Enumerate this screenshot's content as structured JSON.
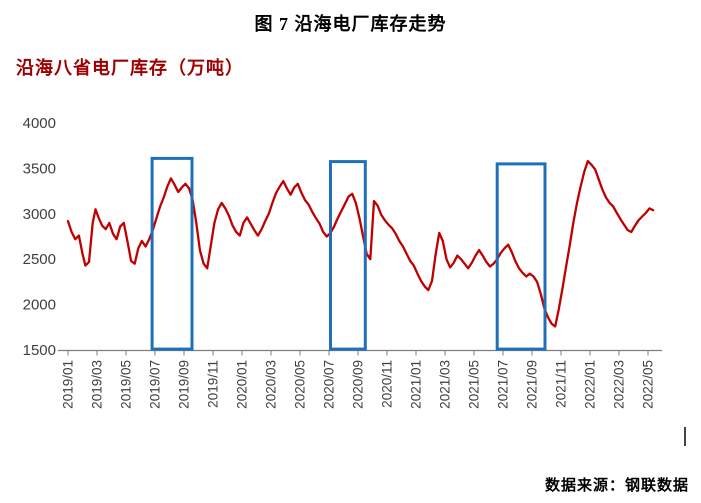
{
  "page": {
    "title": "图 7  沿海电厂库存走势",
    "chart_heading": "沿海八省电厂库存（万吨）",
    "source": "数据来源：钢联数据"
  },
  "colors": {
    "line": "#c00000",
    "highlight_box": "#1f70b8",
    "heading": "#9c0000",
    "axis_text": "#3f3f3f",
    "axis_line": "#7f7f7f"
  },
  "chart_data": {
    "type": "line",
    "title": "沿海八省电厂库存（万吨）",
    "xlabel": "",
    "ylabel": "",
    "ylim": [
      1500,
      4000
    ],
    "grid": false,
    "legend": false,
    "y_ticks": [
      1500,
      2000,
      2500,
      3000,
      3500,
      4000
    ],
    "x_ticks": [
      {
        "pos": 0,
        "label": "2019/01"
      },
      {
        "pos": 2,
        "label": "2019/03"
      },
      {
        "pos": 4,
        "label": "2019/05"
      },
      {
        "pos": 6,
        "label": "2019/07"
      },
      {
        "pos": 8,
        "label": "2019/09"
      },
      {
        "pos": 10,
        "label": "2019/11"
      },
      {
        "pos": 12,
        "label": "2020/01"
      },
      {
        "pos": 14,
        "label": "2020/03"
      },
      {
        "pos": 16,
        "label": "2020/05"
      },
      {
        "pos": 18,
        "label": "2020/07"
      },
      {
        "pos": 20,
        "label": "2020/09"
      },
      {
        "pos": 22,
        "label": "2020/11"
      },
      {
        "pos": 24,
        "label": "2021/01"
      },
      {
        "pos": 26,
        "label": "2021/03"
      },
      {
        "pos": 28,
        "label": "2021/05"
      },
      {
        "pos": 30,
        "label": "2021/07"
      },
      {
        "pos": 32,
        "label": "2021/09"
      },
      {
        "pos": 34,
        "label": "2021/11"
      },
      {
        "pos": 36,
        "label": "2022/01"
      },
      {
        "pos": 38,
        "label": "2022/03"
      },
      {
        "pos": 40,
        "label": "2022/05"
      }
    ],
    "highlight_boxes": [
      {
        "x_start": 5.8,
        "x_end": 8.55,
        "y_bottom": 1510,
        "y_top": 3610
      },
      {
        "x_start": 18.1,
        "x_end": 20.5,
        "y_bottom": 1510,
        "y_top": 3575
      },
      {
        "x_start": 29.6,
        "x_end": 32.9,
        "y_bottom": 1510,
        "y_top": 3550
      }
    ],
    "series": [
      {
        "name": "沿海八省电厂库存",
        "points": [
          [
            0,
            2920
          ],
          [
            0.25,
            2800
          ],
          [
            0.5,
            2720
          ],
          [
            0.75,
            2760
          ],
          [
            1,
            2560
          ],
          [
            1.2,
            2430
          ],
          [
            1.45,
            2470
          ],
          [
            1.7,
            2900
          ],
          [
            1.9,
            3050
          ],
          [
            2.1,
            2960
          ],
          [
            2.35,
            2870
          ],
          [
            2.6,
            2830
          ],
          [
            2.85,
            2900
          ],
          [
            3.1,
            2780
          ],
          [
            3.35,
            2720
          ],
          [
            3.6,
            2860
          ],
          [
            3.85,
            2900
          ],
          [
            4.1,
            2700
          ],
          [
            4.35,
            2480
          ],
          [
            4.6,
            2450
          ],
          [
            4.85,
            2620
          ],
          [
            5.1,
            2700
          ],
          [
            5.35,
            2640
          ],
          [
            5.6,
            2720
          ],
          [
            5.85,
            2820
          ],
          [
            6.1,
            2950
          ],
          [
            6.35,
            3080
          ],
          [
            6.6,
            3180
          ],
          [
            6.85,
            3300
          ],
          [
            7.1,
            3390
          ],
          [
            7.35,
            3320
          ],
          [
            7.6,
            3240
          ],
          [
            7.85,
            3290
          ],
          [
            8.1,
            3330
          ],
          [
            8.35,
            3280
          ],
          [
            8.6,
            3150
          ],
          [
            8.85,
            2900
          ],
          [
            9.1,
            2600
          ],
          [
            9.35,
            2450
          ],
          [
            9.6,
            2400
          ],
          [
            9.85,
            2650
          ],
          [
            10.1,
            2900
          ],
          [
            10.35,
            3050
          ],
          [
            10.6,
            3120
          ],
          [
            10.85,
            3060
          ],
          [
            11.1,
            2980
          ],
          [
            11.35,
            2870
          ],
          [
            11.6,
            2800
          ],
          [
            11.85,
            2760
          ],
          [
            12.1,
            2900
          ],
          [
            12.35,
            2960
          ],
          [
            12.6,
            2890
          ],
          [
            12.85,
            2820
          ],
          [
            13.1,
            2760
          ],
          [
            13.35,
            2830
          ],
          [
            13.6,
            2920
          ],
          [
            13.85,
            3000
          ],
          [
            14.1,
            3120
          ],
          [
            14.35,
            3230
          ],
          [
            14.6,
            3300
          ],
          [
            14.85,
            3360
          ],
          [
            15.1,
            3280
          ],
          [
            15.35,
            3210
          ],
          [
            15.6,
            3290
          ],
          [
            15.85,
            3330
          ],
          [
            16.1,
            3230
          ],
          [
            16.35,
            3150
          ],
          [
            16.6,
            3100
          ],
          [
            16.85,
            3020
          ],
          [
            17.1,
            2950
          ],
          [
            17.35,
            2890
          ],
          [
            17.6,
            2800
          ],
          [
            17.85,
            2750
          ],
          [
            18.1,
            2790
          ],
          [
            18.35,
            2860
          ],
          [
            18.6,
            2950
          ],
          [
            18.85,
            3030
          ],
          [
            19.1,
            3110
          ],
          [
            19.35,
            3190
          ],
          [
            19.6,
            3220
          ],
          [
            19.85,
            3120
          ],
          [
            20.1,
            2950
          ],
          [
            20.35,
            2750
          ],
          [
            20.6,
            2560
          ],
          [
            20.85,
            2500
          ],
          [
            21.1,
            3140
          ],
          [
            21.35,
            3090
          ],
          [
            21.6,
            2990
          ],
          [
            21.85,
            2930
          ],
          [
            22.1,
            2880
          ],
          [
            22.35,
            2840
          ],
          [
            22.6,
            2780
          ],
          [
            22.85,
            2700
          ],
          [
            23.1,
            2640
          ],
          [
            23.35,
            2560
          ],
          [
            23.6,
            2480
          ],
          [
            23.85,
            2430
          ],
          [
            24.1,
            2340
          ],
          [
            24.35,
            2260
          ],
          [
            24.6,
            2200
          ],
          [
            24.85,
            2160
          ],
          [
            25.1,
            2260
          ],
          [
            25.35,
            2550
          ],
          [
            25.6,
            2790
          ],
          [
            25.85,
            2700
          ],
          [
            26.1,
            2500
          ],
          [
            26.35,
            2410
          ],
          [
            26.6,
            2460
          ],
          [
            26.85,
            2540
          ],
          [
            27.1,
            2500
          ],
          [
            27.35,
            2450
          ],
          [
            27.6,
            2400
          ],
          [
            27.85,
            2460
          ],
          [
            28.1,
            2540
          ],
          [
            28.35,
            2600
          ],
          [
            28.6,
            2540
          ],
          [
            28.85,
            2470
          ],
          [
            29.1,
            2420
          ],
          [
            29.35,
            2450
          ],
          [
            29.6,
            2500
          ],
          [
            29.85,
            2570
          ],
          [
            30.1,
            2620
          ],
          [
            30.35,
            2660
          ],
          [
            30.6,
            2580
          ],
          [
            30.85,
            2480
          ],
          [
            31.1,
            2400
          ],
          [
            31.35,
            2350
          ],
          [
            31.6,
            2310
          ],
          [
            31.85,
            2340
          ],
          [
            32.1,
            2310
          ],
          [
            32.35,
            2250
          ],
          [
            32.6,
            2120
          ],
          [
            32.85,
            1960
          ],
          [
            33.1,
            1860
          ],
          [
            33.35,
            1790
          ],
          [
            33.6,
            1760
          ],
          [
            33.85,
            1950
          ],
          [
            34.1,
            2180
          ],
          [
            34.35,
            2420
          ],
          [
            34.6,
            2650
          ],
          [
            34.85,
            2900
          ],
          [
            35.1,
            3120
          ],
          [
            35.35,
            3300
          ],
          [
            35.6,
            3460
          ],
          [
            35.85,
            3580
          ],
          [
            36.1,
            3540
          ],
          [
            36.35,
            3490
          ],
          [
            36.6,
            3380
          ],
          [
            36.85,
            3270
          ],
          [
            37.1,
            3180
          ],
          [
            37.35,
            3120
          ],
          [
            37.6,
            3080
          ],
          [
            37.85,
            3010
          ],
          [
            38.1,
            2940
          ],
          [
            38.35,
            2880
          ],
          [
            38.6,
            2820
          ],
          [
            38.85,
            2800
          ],
          [
            39.1,
            2870
          ],
          [
            39.35,
            2930
          ],
          [
            39.6,
            2970
          ],
          [
            39.85,
            3010
          ],
          [
            40.1,
            3060
          ],
          [
            40.35,
            3040
          ]
        ]
      }
    ]
  }
}
